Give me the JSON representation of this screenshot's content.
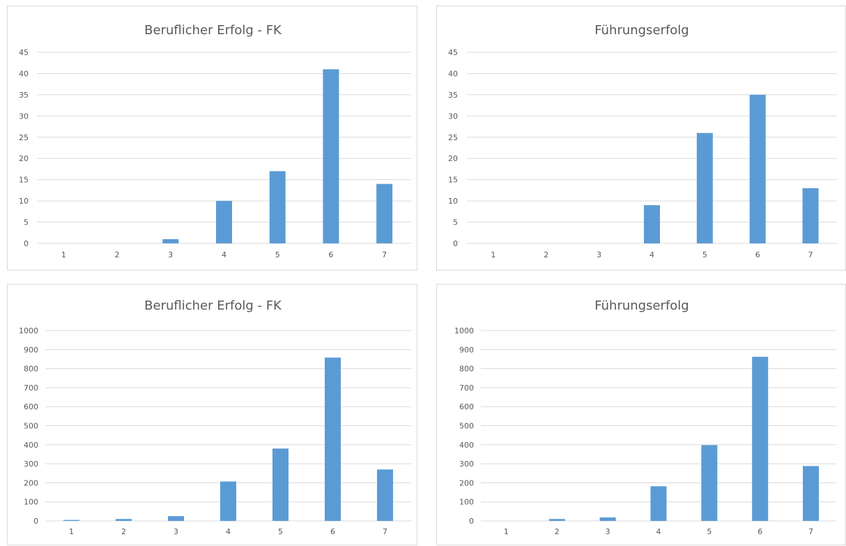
{
  "chart_data": [
    {
      "type": "bar",
      "title": "Beruflicher Erfolg - FK",
      "categories": [
        "1",
        "2",
        "3",
        "4",
        "5",
        "6",
        "7"
      ],
      "values": [
        0,
        0,
        1,
        10,
        17,
        41,
        14
      ],
      "ylim": [
        0,
        45
      ],
      "yticks": [
        0,
        5,
        10,
        15,
        20,
        25,
        30,
        35,
        40,
        45
      ],
      "xlabel": "",
      "ylabel": "",
      "grid": true,
      "legend": "none"
    },
    {
      "type": "bar",
      "title": "Führungserfolg",
      "categories": [
        "1",
        "2",
        "3",
        "4",
        "5",
        "6",
        "7"
      ],
      "values": [
        0,
        0,
        0,
        9,
        26,
        35,
        13
      ],
      "ylim": [
        0,
        45
      ],
      "yticks": [
        0,
        5,
        10,
        15,
        20,
        25,
        30,
        35,
        40,
        45
      ],
      "xlabel": "",
      "ylabel": "",
      "grid": true,
      "legend": "none"
    },
    {
      "type": "bar",
      "title": "Beruflicher Erfolg - FK",
      "categories": [
        "1",
        "2",
        "3",
        "4",
        "5",
        "6",
        "7"
      ],
      "values": [
        5,
        10,
        25,
        207,
        380,
        858,
        270
      ],
      "ylim": [
        0,
        1000
      ],
      "yticks": [
        0,
        100,
        200,
        300,
        400,
        500,
        600,
        700,
        800,
        900,
        1000
      ],
      "xlabel": "",
      "ylabel": "",
      "grid": true,
      "legend": "none"
    },
    {
      "type": "bar",
      "title": "Führungserfolg",
      "categories": [
        "1",
        "2",
        "3",
        "4",
        "5",
        "6",
        "7"
      ],
      "values": [
        0,
        10,
        18,
        182,
        398,
        862,
        288
      ],
      "ylim": [
        0,
        1000
      ],
      "yticks": [
        0,
        100,
        200,
        300,
        400,
        500,
        600,
        700,
        800,
        900,
        1000
      ],
      "xlabel": "",
      "ylabel": "",
      "grid": true,
      "legend": "none"
    }
  ],
  "colors": {
    "bar": "#5b9bd5",
    "grid": "#d9d9d9",
    "text": "#595959"
  }
}
